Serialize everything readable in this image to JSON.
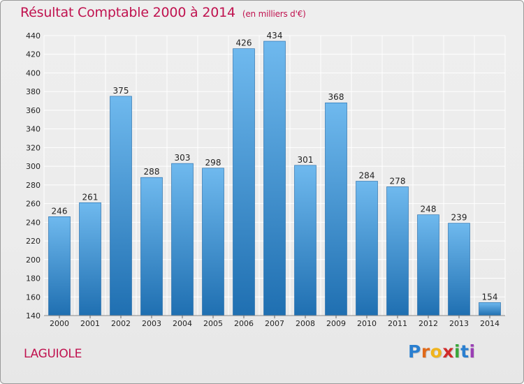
{
  "title": "Résultat Comptable 2000 à 2014",
  "subtitle": "(en milliers d'€)",
  "town": "LAGUIOLE",
  "logo_letters": [
    "P",
    "r",
    "o",
    "x",
    "i",
    "t",
    "i"
  ],
  "logo_colors": [
    "#2a7fd0",
    "#e06a1a",
    "#f0b41c",
    "#d02b2b",
    "#3aa63a",
    "#2a7fd0",
    "#9b3fb5"
  ],
  "colors": {
    "title": "#c0124f",
    "bar_top": "#6fb9ee",
    "bar_bottom": "#1f6fb1",
    "grid": "#ffffff"
  },
  "chart_data": {
    "type": "bar",
    "title": "Résultat Comptable 2000 à 2014",
    "xlabel": "",
    "ylabel": "",
    "categories": [
      "2000",
      "2001",
      "2002",
      "2003",
      "2004",
      "2005",
      "2006",
      "2007",
      "2008",
      "2009",
      "2010",
      "2011",
      "2012",
      "2013",
      "2014"
    ],
    "values": [
      246,
      261,
      375,
      288,
      303,
      298,
      426,
      434,
      301,
      368,
      284,
      278,
      248,
      239,
      154
    ],
    "ylim": [
      140,
      440
    ],
    "yticks": [
      140,
      160,
      180,
      200,
      220,
      240,
      260,
      280,
      300,
      320,
      340,
      360,
      380,
      400,
      420,
      440
    ],
    "grid": true
  }
}
